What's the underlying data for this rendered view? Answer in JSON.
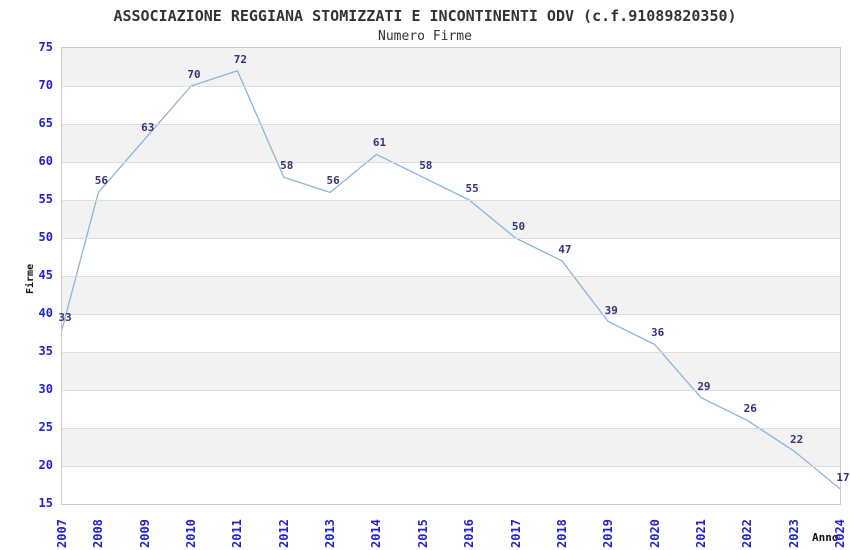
{
  "chart_data": {
    "type": "line",
    "title": "ASSOCIAZIONE REGGIANA STOMIZZATI E INCONTINENTI ODV (c.f.91089820350)",
    "subtitle": "Numero Firme",
    "xlabel": "Anno",
    "ylabel": "Firme",
    "x": [
      2007,
      2008,
      2009,
      2010,
      2011,
      2012,
      2013,
      2014,
      2015,
      2016,
      2017,
      2018,
      2019,
      2020,
      2021,
      2022,
      2023,
      2024
    ],
    "values": [
      33,
      56,
      63,
      70,
      72,
      58,
      56,
      61,
      58,
      55,
      50,
      47,
      39,
      36,
      29,
      26,
      22,
      17
    ],
    "ylim": [
      15,
      75
    ],
    "ytick_step": 5,
    "grid": true,
    "legend": null,
    "band_colors": [
      "#f2f2f2",
      "#ffffff"
    ],
    "line_color": "#8ab4de",
    "data_label_color": "#333377",
    "tick_label_color": "#2222cc",
    "grid_color": "#dddddd",
    "border_color": "#cccccc",
    "background_color": "#ffffff"
  }
}
